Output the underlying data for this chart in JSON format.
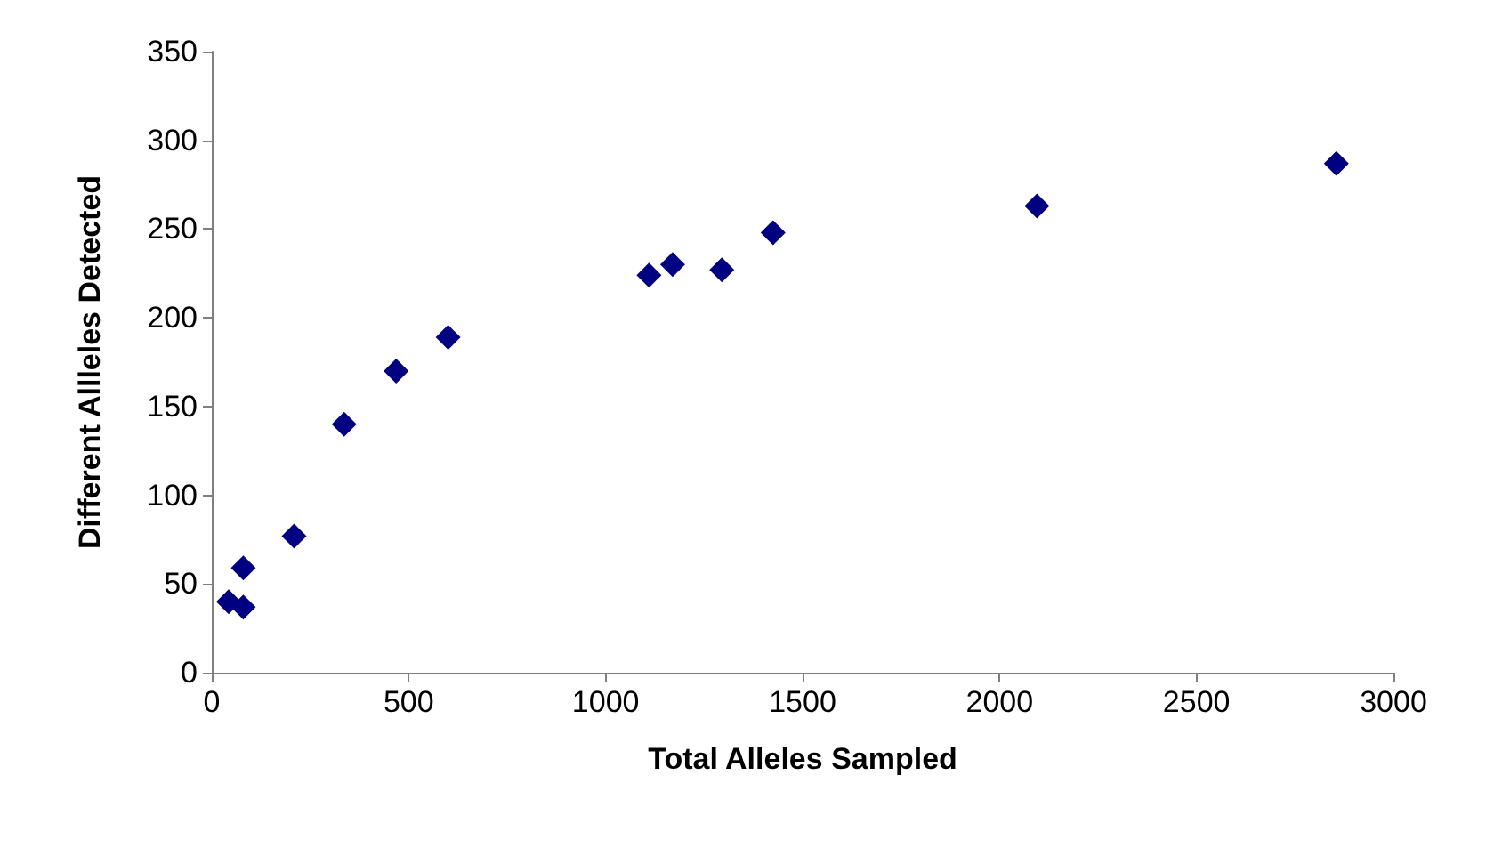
{
  "chart_data": {
    "type": "scatter",
    "xlabel": "Total Alleles Sampled",
    "ylabel": "Different Allleles Detected",
    "x": [
      43,
      80,
      80,
      209,
      336,
      468,
      600,
      1110,
      1170,
      1295,
      1425,
      2095,
      2855
    ],
    "values": [
      40,
      37,
      59,
      77,
      140,
      170,
      189,
      224,
      230,
      227,
      248,
      263,
      287
    ],
    "color": "#000080",
    "marker": "diamond",
    "xlim": [
      0,
      3000
    ],
    "xticks": [
      0,
      500,
      1000,
      1500,
      2000,
      2500,
      3000
    ],
    "ylim": [
      0,
      350
    ],
    "yticks": [
      0,
      50,
      100,
      150,
      200,
      250,
      300,
      350
    ],
    "grid": false
  }
}
